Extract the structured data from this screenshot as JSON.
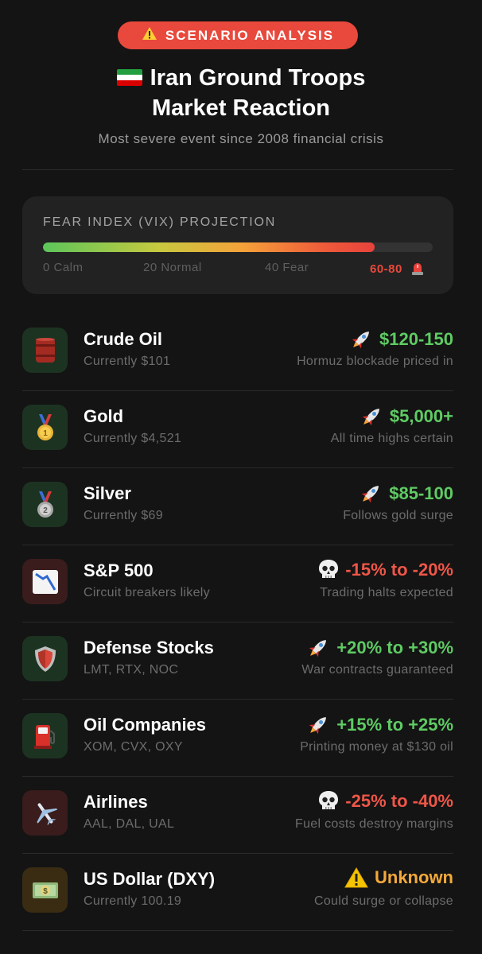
{
  "badge": {
    "icon": "warning-icon",
    "label": "SCENARIO ANALYSIS"
  },
  "header": {
    "flag_icon": "iran-flag-icon",
    "title_line1": "Iran Ground Troops",
    "title_line2": "Market Reaction",
    "subtitle": "Most severe event since 2008 financial crisis"
  },
  "vix": {
    "title": "FEAR INDEX (VIX) PROJECTION",
    "fill_percent": 85,
    "labels": [
      "0 Calm",
      "20 Normal",
      "40 Fear",
      "60-80"
    ],
    "alarm_icon": "siren-icon"
  },
  "assets": [
    {
      "name": "Crude Oil",
      "sub": "Currently $101",
      "icon": "oil-barrel-icon",
      "icon_bg": "green",
      "trend_icon": "rocket-icon",
      "projection": "$120-150",
      "direction": "up",
      "note": "Hormuz blockade priced in"
    },
    {
      "name": "Gold",
      "sub": "Currently $4,521",
      "icon": "gold-medal-icon",
      "icon_bg": "green",
      "trend_icon": "rocket-icon",
      "projection": "$5,000+",
      "direction": "up",
      "note": "All time highs certain"
    },
    {
      "name": "Silver",
      "sub": "Currently $69",
      "icon": "silver-medal-icon",
      "icon_bg": "green",
      "trend_icon": "rocket-icon",
      "projection": "$85-100",
      "direction": "up",
      "note": "Follows gold surge"
    },
    {
      "name": "S&P 500",
      "sub": "Circuit breakers likely",
      "icon": "chart-decreasing-icon",
      "icon_bg": "red",
      "trend_icon": "skull-icon",
      "projection": "-15% to -20%",
      "direction": "down",
      "note": "Trading halts expected"
    },
    {
      "name": "Defense Stocks",
      "sub": "LMT, RTX, NOC",
      "icon": "shield-icon",
      "icon_bg": "green",
      "trend_icon": "rocket-icon",
      "projection": "+20% to +30%",
      "direction": "up",
      "note": "War contracts guaranteed"
    },
    {
      "name": "Oil Companies",
      "sub": "XOM, CVX, OXY",
      "icon": "fuel-pump-icon",
      "icon_bg": "green",
      "trend_icon": "rocket-icon",
      "projection": "+15% to +25%",
      "direction": "up",
      "note": "Printing money at $130 oil"
    },
    {
      "name": "Airlines",
      "sub": "AAL, DAL, UAL",
      "icon": "airplane-icon",
      "icon_bg": "red",
      "trend_icon": "skull-icon",
      "projection": "-25% to -40%",
      "direction": "down",
      "note": "Fuel costs destroy margins"
    },
    {
      "name": "US Dollar (DXY)",
      "sub": "Currently 100.19",
      "icon": "dollar-banknote-icon",
      "icon_bg": "amber",
      "trend_icon": "warning-icon",
      "projection": "Unknown",
      "direction": "unknown",
      "note": "Could surge or collapse"
    }
  ],
  "colors": {
    "accent_red": "#e8493c",
    "up_green": "#5ecb63",
    "down_red": "#ee5648",
    "unknown_amber": "#f5a93a",
    "background": "#141414"
  }
}
